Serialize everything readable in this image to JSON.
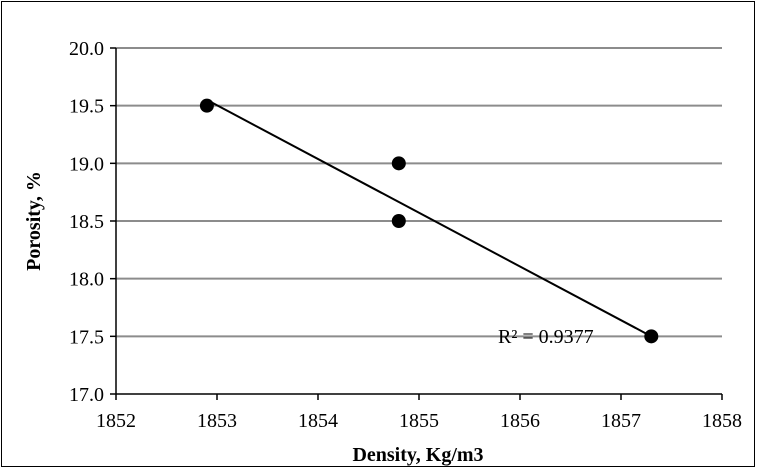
{
  "chart_data": {
    "type": "scatter",
    "title": "",
    "xlabel": "Density, Kg/m3",
    "ylabel": "Porosity, %",
    "xlim": [
      1852,
      1858
    ],
    "ylim": [
      17.0,
      20.0
    ],
    "x_ticks": [
      "1852",
      "1853",
      "1854",
      "1855",
      "1856",
      "1857",
      "1858"
    ],
    "y_ticks": [
      "17.0",
      "17.5",
      "18.0",
      "18.5",
      "19.0",
      "19.5",
      "20.0"
    ],
    "grid": "horizontal",
    "legend": "none",
    "series": [
      {
        "points": [
          {
            "x": 1852.9,
            "y": 19.5
          },
          {
            "x": 1854.8,
            "y": 19.0
          },
          {
            "x": 1854.8,
            "y": 18.5
          },
          {
            "x": 1857.3,
            "y": 17.5
          }
        ],
        "color": "#000000"
      }
    ],
    "trendline": {
      "type": "linear",
      "from": {
        "x": 1852.9,
        "y": 19.55
      },
      "to": {
        "x": 1857.3,
        "y": 17.5
      },
      "r_squared_label": "R² = 0.9377"
    }
  }
}
